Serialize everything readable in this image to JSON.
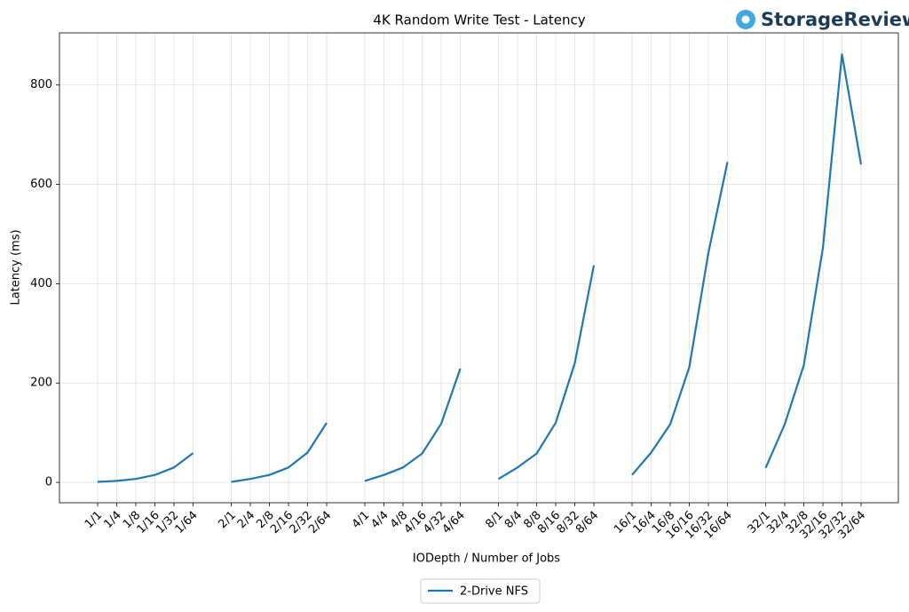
{
  "logo": "StorageReview",
  "chart_data": {
    "type": "line",
    "title": "4K Random Write Test - Latency",
    "x_label": "IODepth / Number of Jobs",
    "y_label": "Latency (ms)",
    "categories": [
      "1/1",
      "1/4",
      "1/8",
      "1/16",
      "1/32",
      "1/64",
      null,
      "2/1",
      "2/4",
      "2/8",
      "2/16",
      "2/32",
      "2/64",
      null,
      "4/1",
      "4/4",
      "4/8",
      "4/16",
      "4/32",
      "4/64",
      null,
      "8/1",
      "8/4",
      "8/8",
      "8/16",
      "8/32",
      "8/64",
      null,
      "16/1",
      "16/4",
      "16/8",
      "16/16",
      "16/32",
      "16/64",
      null,
      "32/1",
      "32/4",
      "32/8",
      "32/16",
      "32/32",
      "32/64"
    ],
    "series": [
      {
        "name": "2-Drive NFS",
        "color": "#1f77b4",
        "values": [
          1,
          3,
          7,
          15,
          30,
          59,
          null,
          1,
          7,
          15,
          30,
          60,
          120,
          null,
          3,
          15,
          30,
          58,
          118,
          229,
          null,
          7,
          30,
          58,
          120,
          240,
          437,
          null,
          15,
          60,
          117,
          232,
          462,
          645,
          null,
          29,
          117,
          236,
          472,
          862,
          640
        ]
      }
    ],
    "ylim": [
      -41,
      905
    ],
    "yticks": [
      0,
      200,
      400,
      600,
      800
    ],
    "grid": true,
    "legend": "bottom"
  }
}
